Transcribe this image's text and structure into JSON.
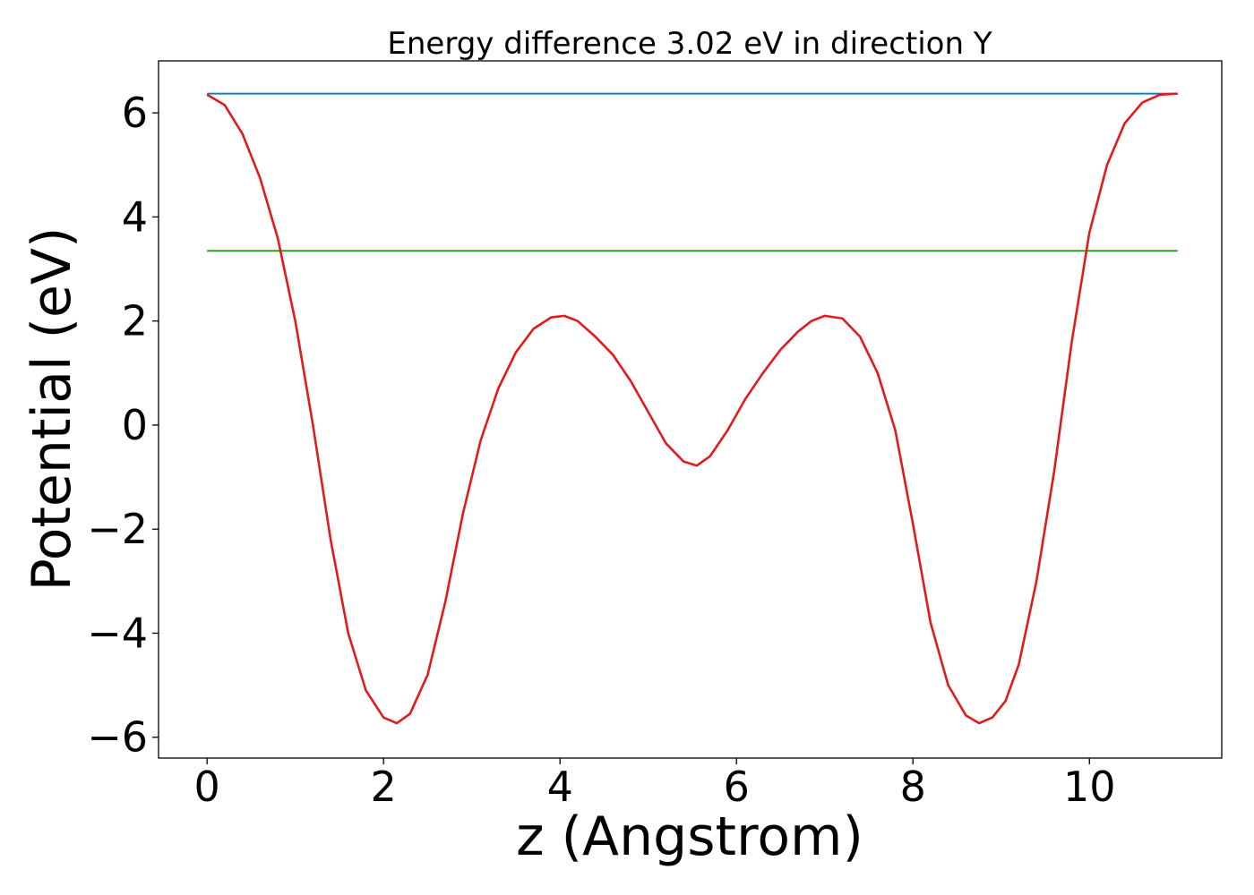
{
  "chart_data": {
    "type": "line",
    "title": "Energy difference 3.02 eV in direction Y",
    "xlabel": "z (Angstrom)",
    "ylabel": "Potential (eV)",
    "xlim": [
      -0.55,
      11.5
    ],
    "ylim": [
      -6.4,
      7.0
    ],
    "xticks": [
      0,
      2,
      4,
      6,
      8,
      10
    ],
    "xtick_labels": [
      "0",
      "2",
      "4",
      "6",
      "8",
      "10"
    ],
    "yticks": [
      6,
      4,
      2,
      0,
      -2,
      -4,
      -6
    ],
    "ytick_labels": [
      "6",
      "4",
      "2",
      "0",
      "−2",
      "−4",
      "−6"
    ],
    "grid": false,
    "legend": "none",
    "series": [
      {
        "style": "line",
        "color": "#1f77b4",
        "x": [
          0,
          11.0
        ],
        "y": [
          6.37,
          6.37
        ]
      },
      {
        "style": "line",
        "color": "#2ca02c",
        "x": [
          0,
          11.0
        ],
        "y": [
          3.35,
          3.35
        ]
      },
      {
        "style": "line",
        "color": "#e31a1c",
        "x": [
          0,
          0.2,
          0.4,
          0.6,
          0.8,
          1.0,
          1.2,
          1.4,
          1.6,
          1.8,
          2.0,
          2.15,
          2.3,
          2.5,
          2.7,
          2.9,
          3.1,
          3.3,
          3.5,
          3.7,
          3.9,
          4.05,
          4.2,
          4.4,
          4.6,
          4.8,
          5.0,
          5.2,
          5.4,
          5.55,
          5.7,
          5.9,
          6.1,
          6.3,
          6.5,
          6.7,
          6.85,
          7.0,
          7.2,
          7.4,
          7.6,
          7.8,
          8.0,
          8.2,
          8.4,
          8.6,
          8.75,
          8.9,
          9.05,
          9.2,
          9.4,
          9.6,
          9.8,
          10.0,
          10.2,
          10.4,
          10.6,
          10.8,
          11.0
        ],
        "y": [
          6.35,
          6.15,
          5.6,
          4.75,
          3.6,
          2.0,
          0.0,
          -2.2,
          -4.0,
          -5.1,
          -5.62,
          -5.73,
          -5.55,
          -4.8,
          -3.4,
          -1.7,
          -0.3,
          0.7,
          1.4,
          1.85,
          2.07,
          2.1,
          2.0,
          1.7,
          1.35,
          0.85,
          0.25,
          -0.35,
          -0.7,
          -0.78,
          -0.6,
          -0.1,
          0.5,
          1.0,
          1.45,
          1.8,
          2.0,
          2.1,
          2.05,
          1.7,
          1.0,
          -0.1,
          -1.9,
          -3.8,
          -5.0,
          -5.58,
          -5.73,
          -5.62,
          -5.3,
          -4.6,
          -3.0,
          -0.9,
          1.6,
          3.7,
          5.0,
          5.8,
          6.2,
          6.35,
          6.37
        ]
      }
    ]
  }
}
